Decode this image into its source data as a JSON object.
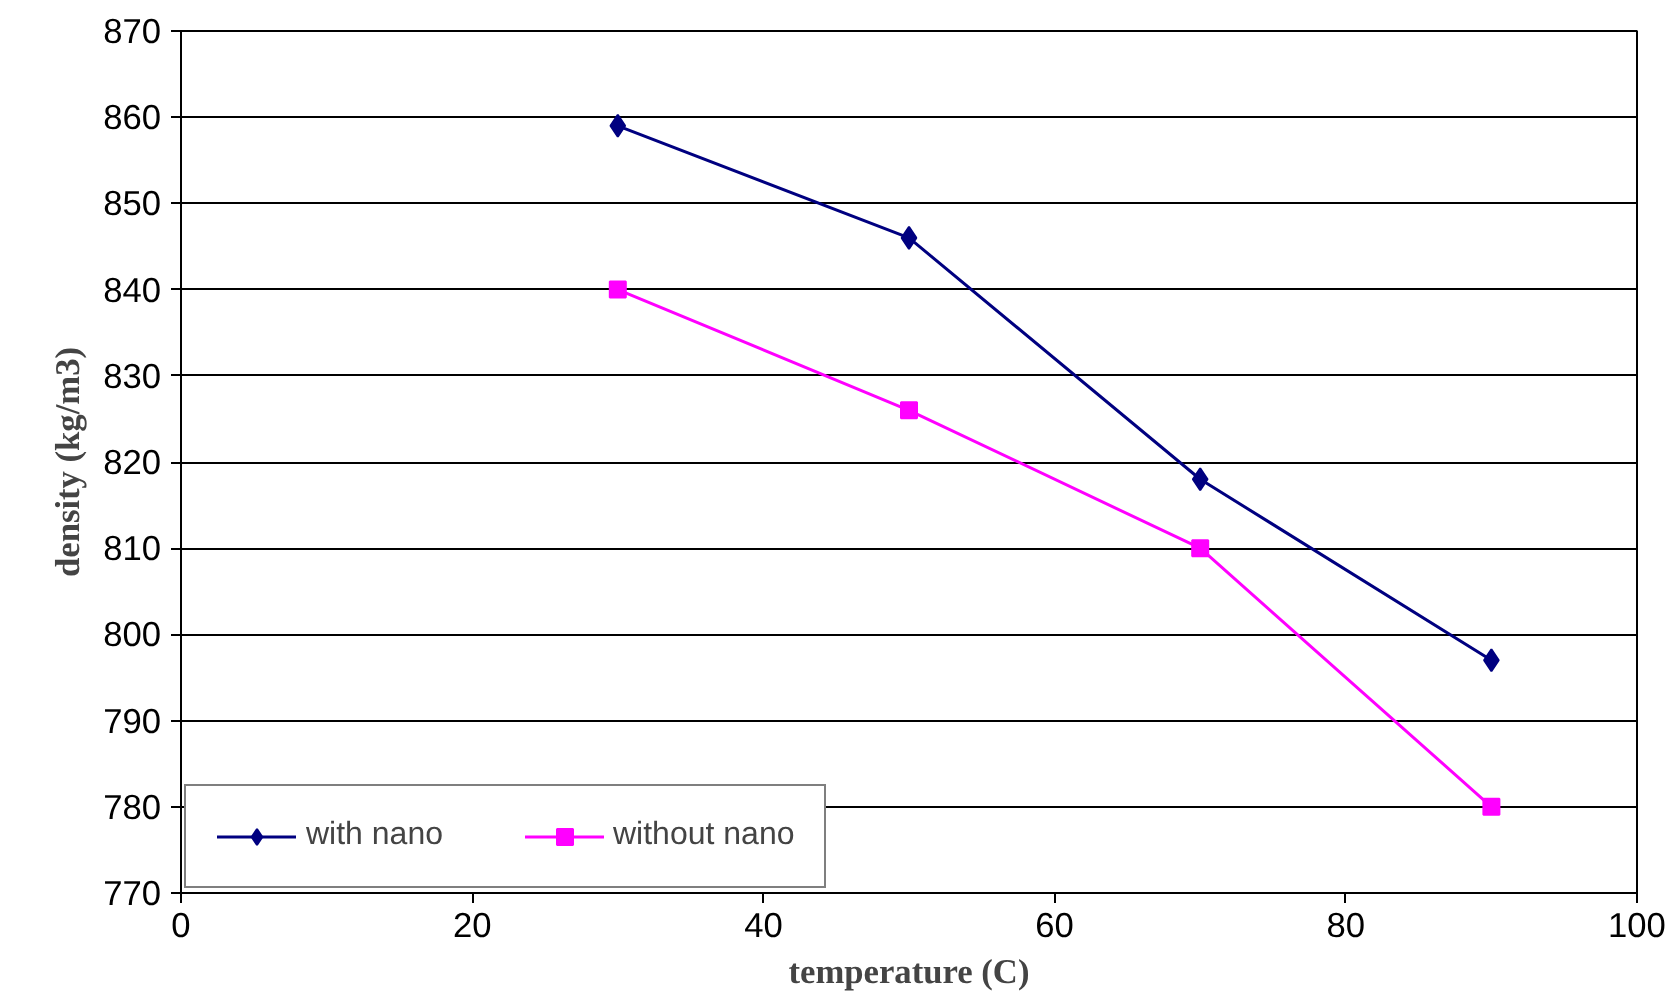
{
  "chart_data": {
    "type": "line",
    "xlabel": "temperature (C)",
    "ylabel": "density (kg/m3)",
    "x": [
      30,
      50,
      70,
      90
    ],
    "series": [
      {
        "name": "with nano",
        "color": "#000080",
        "values": [
          859,
          846,
          818,
          797
        ],
        "marker": "diamond"
      },
      {
        "name": "without nano",
        "color": "#ff00ff",
        "values": [
          840,
          826,
          810,
          780
        ],
        "marker": "square"
      }
    ],
    "xlim": [
      0,
      100
    ],
    "xticks": [
      0,
      20,
      40,
      60,
      80,
      100
    ],
    "ylim": [
      770,
      870
    ],
    "yticks": [
      770,
      780,
      790,
      800,
      810,
      820,
      830,
      840,
      850,
      860,
      870
    ],
    "grid": "y",
    "legend": "bottom left",
    "line_style": "solid"
  }
}
